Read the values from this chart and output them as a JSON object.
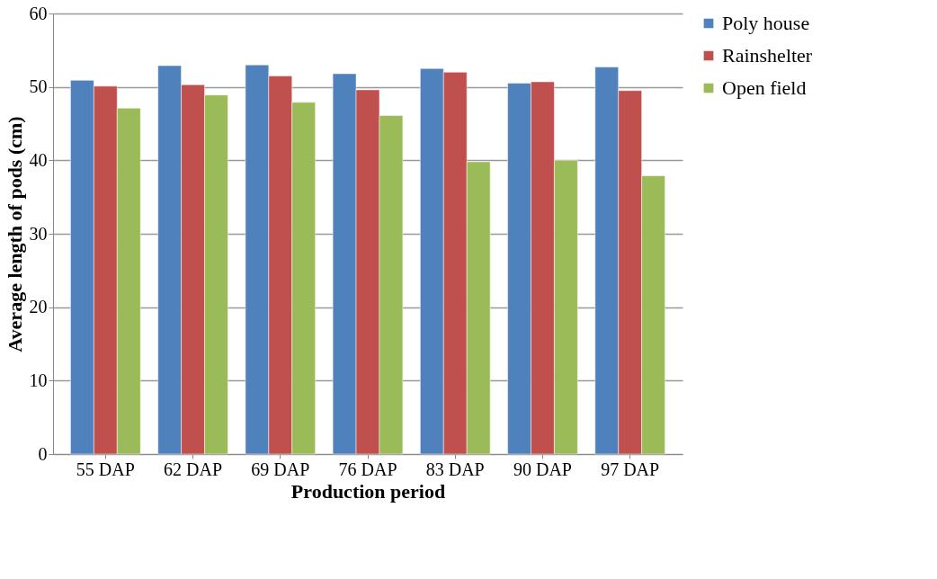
{
  "chart_data": {
    "type": "bar",
    "xlabel": "Production period",
    "ylabel": "Average length of pods (cm)",
    "categories": [
      "55 DAP",
      "62 DAP",
      "69 DAP",
      "76 DAP",
      "83 DAP",
      "90 DAP",
      "97 DAP"
    ],
    "series": [
      {
        "name": "Poly house",
        "color": "#4f81bd",
        "values": [
          50.9,
          52.9,
          53.0,
          51.8,
          52.5,
          50.5,
          52.7
        ]
      },
      {
        "name": "Rainshelter",
        "color": "#c0504d",
        "values": [
          50.1,
          50.3,
          51.5,
          49.6,
          52.0,
          50.7,
          49.5
        ]
      },
      {
        "name": "Open field",
        "color": "#9bbb59",
        "values": [
          47.1,
          48.9,
          47.9,
          46.1,
          39.8,
          40.0,
          37.9
        ]
      }
    ],
    "ylim": [
      0,
      60
    ],
    "yticks": [
      0,
      10,
      20,
      30,
      40,
      50,
      60
    ],
    "grid": "y",
    "legend": "right"
  }
}
